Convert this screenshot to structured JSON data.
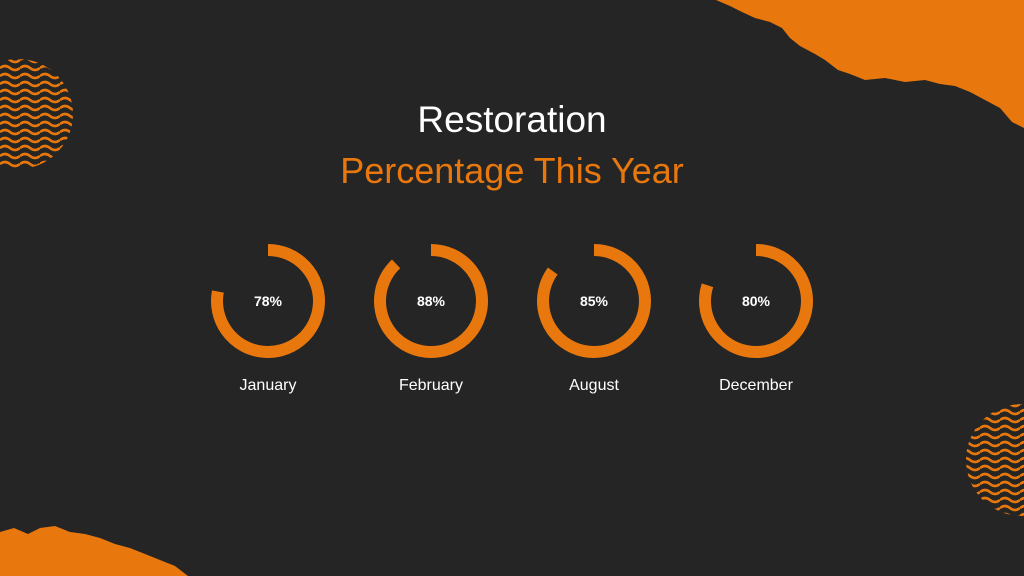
{
  "slide": {
    "title": "Restoration",
    "subtitle": "Percentage This Year"
  },
  "colors": {
    "background": "#252525",
    "accent": "#E8780E",
    "text": "#FFFFFF"
  },
  "chart_data": {
    "type": "donut",
    "categories": [
      "January",
      "February",
      "August",
      "December"
    ],
    "values": [
      78,
      88,
      85,
      80
    ],
    "value_labels": [
      "78%",
      "88%",
      "85%",
      "80%"
    ],
    "unit": "%",
    "max": 100
  }
}
